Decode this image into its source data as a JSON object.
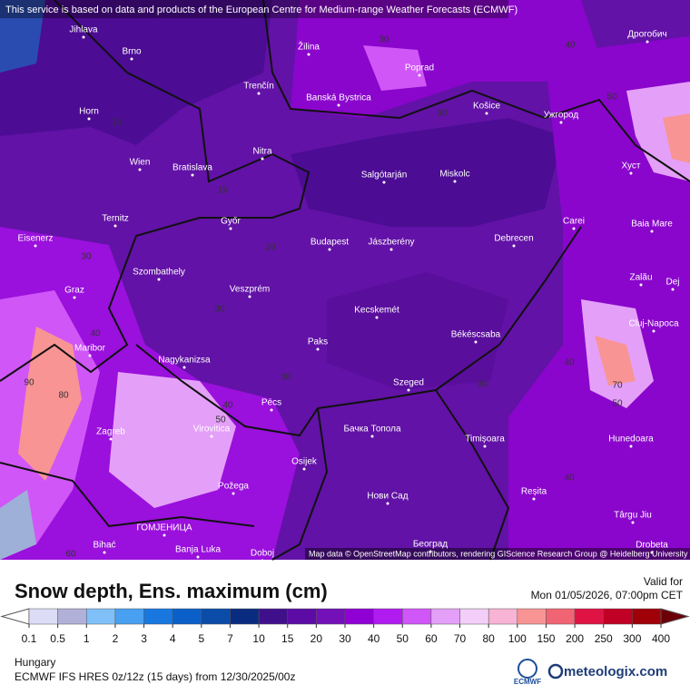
{
  "attribution_top": "This service is based on data and products of the European Centre for Medium-range Weather Forecasts (ECMWF)",
  "map_credit": "Map data © OpenStreetMap contributors, rendering GIScience Research Group @ Heidelberg University",
  "cities": [
    "Jihlava",
    "Brno",
    "Žilina",
    "Poprad",
    "Košice",
    "Дрогобич",
    "Trenčín",
    "Banská Bystrica",
    "Horn",
    "Ужгород",
    "Nitra",
    "Wien",
    "Bratislava",
    "Salgótarján",
    "Miskolc",
    "Хуст",
    "Ternitz",
    "Győr",
    "Carei",
    "Baia Mare",
    "Eisenerz",
    "Budapest",
    "Jászberény",
    "Debrecen",
    "Szombathely",
    "Graz",
    "Veszprém",
    "Zalău",
    "Dej",
    "Kecskemét",
    "Cluj-Napoca",
    "Maribor",
    "Paks",
    "Békéscsaba",
    "Nagykanizsa",
    "Szeged",
    "Zagreb",
    "Pécs",
    "Virovitica",
    "Бачка Топола",
    "Timișoara",
    "Hunedoara",
    "Osijek",
    "Požega",
    "Нови Сад",
    "Reșita",
    "Târgu Jiu",
    "Bihać",
    "ГОМЈЕНИЦА",
    "Banja Luka",
    "Doboj",
    "Београд",
    "Drobeta"
  ],
  "contour_labels": [
    30,
    40,
    30,
    15,
    15,
    20,
    30,
    30,
    40,
    50,
    90,
    80,
    60,
    70,
    50,
    40,
    30,
    40,
    50,
    30,
    40
  ],
  "title": "Snow depth, Ens. maximum (cm)",
  "valid_label": "Valid for",
  "valid_time": "Mon 01/05/2026, 07:00pm CET",
  "colorbar": {
    "levels": [
      0.1,
      0.5,
      1,
      2,
      3,
      4,
      5,
      7,
      10,
      15,
      20,
      30,
      40,
      50,
      60,
      70,
      80,
      100,
      150,
      200,
      250,
      300,
      400
    ],
    "colors": [
      "#dcdcf6",
      "#b0b0d8",
      "#80c0f8",
      "#4aa0f0",
      "#1878e0",
      "#0a60c8",
      "#0a4ca8",
      "#0a2c80",
      "#40108c",
      "#5c0ca4",
      "#7410b8",
      "#9000d4",
      "#b01cf0",
      "#d056f8",
      "#e4a0f8",
      "#f2cef8",
      "#f8b4d4",
      "#f89494",
      "#f06474",
      "#e01444",
      "#c00024",
      "#a00008"
    ],
    "under_color": "#ffffff",
    "over_color": "#6c0008"
  },
  "region": "Hungary",
  "model_run": "ECMWF IFS HRES 0z/12z (15 days) from  12/30/2025/00z",
  "logo_ecmwf": "ECMWF",
  "logo_site": "meteologix.com"
}
